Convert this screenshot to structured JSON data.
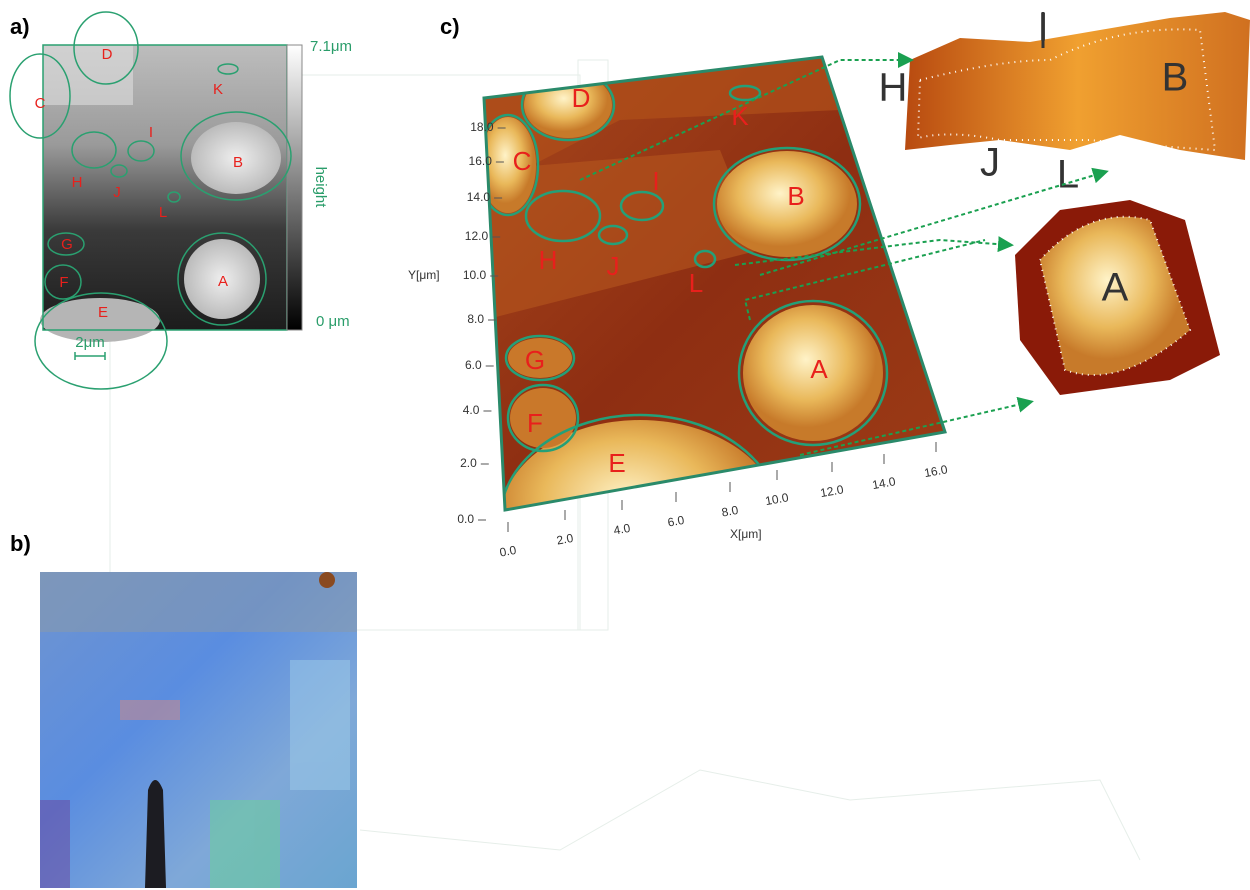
{
  "panels": {
    "a": {
      "label": "a)",
      "colorbar": {
        "max": "7.1μm",
        "min": "0 μm",
        "label": "height"
      },
      "scale_bar": "2μm",
      "regions": [
        "D",
        "K",
        "C",
        "I",
        "B",
        "H",
        "J",
        "L",
        "G",
        "F",
        "A",
        "E"
      ]
    },
    "b": {
      "label": "b)"
    },
    "c": {
      "label": "c)",
      "y_axis_label": "Y[μm]",
      "x_axis_label": "X[μm]",
      "yticks": [
        "18.0",
        "16.0",
        "14.0",
        "12.0",
        "10.0",
        "8.0",
        "6.0",
        "4.0",
        "2.0",
        "0.0"
      ],
      "xticks": [
        "0.0",
        "2.0",
        "4.0",
        "6.0",
        "8.0",
        "10.0",
        "12.0",
        "14.0",
        "16.0"
      ],
      "regions": [
        "D",
        "K",
        "C",
        "I",
        "B",
        "H",
        "J",
        "L",
        "G",
        "F",
        "A",
        "E"
      ],
      "insets": [
        {
          "labels": [
            "H",
            "I",
            "J",
            "L",
            "B"
          ]
        },
        {
          "labels": [
            "A"
          ]
        }
      ]
    }
  }
}
